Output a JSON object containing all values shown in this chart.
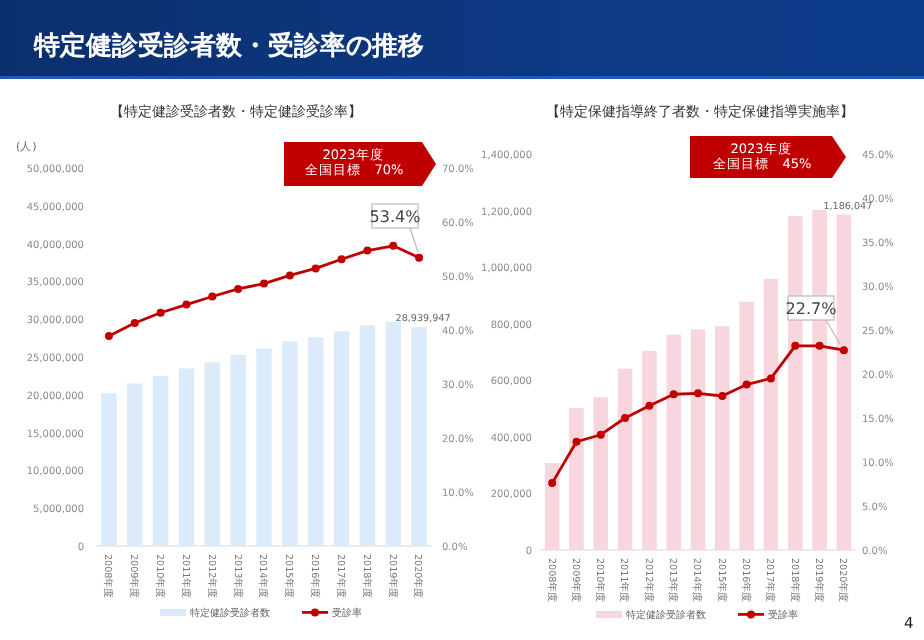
{
  "chart_data": [
    {
      "type": "bar",
      "title": "【特定健診受診者数・特定健診受診率】",
      "ylabel": "(人)",
      "legend": "bottom",
      "marker": "circle",
      "categories": [
        "2008年度",
        "2009年度",
        "2010年度",
        "2011年度",
        "2012年度",
        "2013年度",
        "2014年度",
        "2015年度",
        "2016年度",
        "2017年度",
        "2018年度",
        "2019年度",
        "2020年度"
      ],
      "series": [
        {
          "name": "特定健診受診者数",
          "color": "#dcebfb",
          "values": [
            20200000,
            21500000,
            22500000,
            23500000,
            24300000,
            25300000,
            26100000,
            27100000,
            27600000,
            28400000,
            29200000,
            29700000,
            28939947
          ]
        },
        {
          "name": "受診率",
          "type": "line",
          "axis": "y2",
          "color": "#c00000",
          "values": [
            38.9,
            41.3,
            43.2,
            44.7,
            46.2,
            47.6,
            48.6,
            50.1,
            51.4,
            53.1,
            54.7,
            55.6,
            53.4
          ]
        }
      ],
      "ylim": [
        0,
        50000000
      ],
      "yticks": [
        {
          "value": 0,
          "label": "0"
        },
        {
          "value": 5000000,
          "label": "5,000,000"
        },
        {
          "value": 10000000,
          "label": "10,000,000"
        },
        {
          "value": 15000000,
          "label": "15,000,000"
        },
        {
          "value": 20000000,
          "label": "20,000,000"
        },
        {
          "value": 25000000,
          "label": "25,000,000"
        },
        {
          "value": 30000000,
          "label": "30,000,000"
        },
        {
          "value": 35000000,
          "label": "35,000,000"
        },
        {
          "value": 40000000,
          "label": "40,000,000"
        },
        {
          "value": 45000000,
          "label": "45,000,000"
        },
        {
          "value": 50000000,
          "label": "50,000,000"
        }
      ],
      "y2lim": [
        0,
        70
      ],
      "y2ticks": [
        {
          "value": 0,
          "label": "0.0%"
        },
        {
          "value": 10,
          "label": "10.0%"
        },
        {
          "value": 20,
          "label": "20.0%"
        },
        {
          "value": 30,
          "label": "30.0%"
        },
        {
          "value": 40,
          "label": "40.0%"
        },
        {
          "value": 50,
          "label": "50.0%"
        },
        {
          "value": 60,
          "label": "60.0%"
        },
        {
          "value": 70,
          "label": "70.0%"
        }
      ],
      "annotations": [
        "特定健診受診者数・受診率の推移",
        "2023年度",
        "全国目標　70%",
        "53.4%",
        {
          "text": "28,939,947",
          "x": "2020年度",
          "y": 28939947
        }
      ]
    },
    {
      "type": "bar",
      "title": "【特定保健指導終了者数・特定保健指導実施率】",
      "legend": "bottom",
      "marker": "circle",
      "categories": [
        "2008年度",
        "2009年度",
        "2010年度",
        "2011年度",
        "2012年度",
        "2013年度",
        "2014年度",
        "2015年度",
        "2016年度",
        "2017年度",
        "2018年度",
        "2019年度",
        "2020年度"
      ],
      "series": [
        {
          "name": "特定健診受診者数",
          "color": "#f8d6de",
          "values": [
            308000,
            502000,
            540000,
            641000,
            704000,
            761000,
            780000,
            791000,
            878000,
            958000,
            1181000,
            1202000,
            1186047
          ]
        },
        {
          "name": "受診率",
          "type": "line",
          "axis": "y2",
          "color": "#c00000",
          "values": [
            7.6,
            12.3,
            13.1,
            15.0,
            16.4,
            17.7,
            17.8,
            17.5,
            18.8,
            19.5,
            23.2,
            23.2,
            22.7
          ]
        }
      ],
      "ylim": [
        0,
        1400000
      ],
      "yticks": [
        {
          "value": 0,
          "label": "0"
        },
        {
          "value": 200000,
          "label": "200,000"
        },
        {
          "value": 400000,
          "label": "400,000"
        },
        {
          "value": 600000,
          "label": "600,000"
        },
        {
          "value": 800000,
          "label": "800,000"
        },
        {
          "value": 1000000,
          "label": "1,000,000"
        },
        {
          "value": 1200000,
          "label": "1,200,000"
        },
        {
          "value": 1400000,
          "label": "1,400,000"
        }
      ],
      "y2lim": [
        0,
        45
      ],
      "y2ticks": [
        {
          "value": 0,
          "label": "0.0%"
        },
        {
          "value": 5,
          "label": "5.0%"
        },
        {
          "value": 10,
          "label": "10.0%"
        },
        {
          "value": 15,
          "label": "15.0%"
        },
        {
          "value": 20,
          "label": "20.0%"
        },
        {
          "value": 25,
          "label": "25.0%"
        },
        {
          "value": 30,
          "label": "30.0%"
        },
        {
          "value": 35,
          "label": "35.0%"
        },
        {
          "value": 40,
          "label": "40.0%"
        },
        {
          "value": 45,
          "label": "45.0%"
        }
      ],
      "annotations": [
        "2023年度",
        "全国目標　45%",
        {
          "text": "1,186,047",
          "x": "2020年度",
          "y": 1186047
        },
        "22.7%",
        "4"
      ]
    }
  ]
}
